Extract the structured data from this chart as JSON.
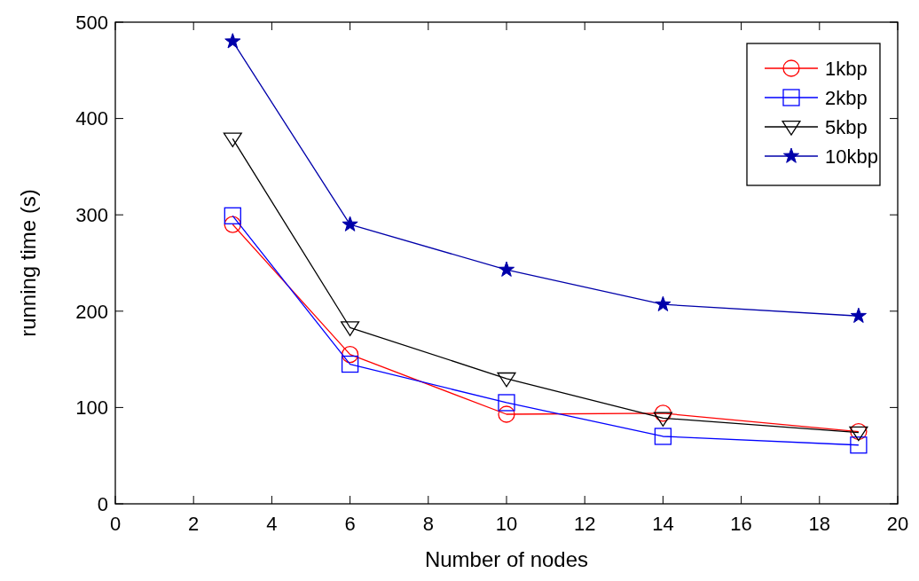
{
  "chart_data": {
    "type": "line",
    "xlabel": "Number of nodes",
    "ylabel": "running time (s)",
    "x": [
      3,
      6,
      10,
      14,
      19
    ],
    "xlim": [
      0,
      20
    ],
    "xticks": [
      0,
      2,
      4,
      6,
      8,
      10,
      12,
      14,
      16,
      18,
      20
    ],
    "ylim": [
      0,
      500
    ],
    "yticks": [
      0,
      100,
      200,
      300,
      400,
      500
    ],
    "grid": false,
    "legend": "top right",
    "series": [
      {
        "name": "1kbp",
        "color": "#ff0000",
        "marker": "circle",
        "values": [
          290,
          155,
          93,
          94,
          75
        ]
      },
      {
        "name": "2kbp",
        "color": "#0000ff",
        "marker": "square",
        "values": [
          299,
          145,
          105,
          70,
          61
        ]
      },
      {
        "name": "5kbp",
        "color": "#000000",
        "marker": "triangle",
        "values": [
          379,
          183,
          130,
          89,
          74
        ]
      },
      {
        "name": "10kbp",
        "color": "#0000aa",
        "marker": "star",
        "values": [
          480,
          290,
          243,
          207,
          195
        ]
      }
    ]
  }
}
